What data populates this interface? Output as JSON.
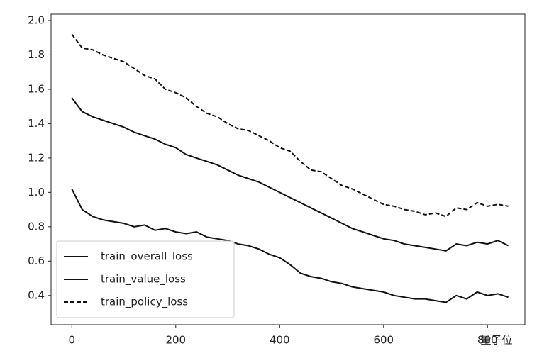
{
  "chart_data": {
    "type": "line",
    "x": [
      0,
      20,
      40,
      60,
      80,
      100,
      120,
      140,
      160,
      180,
      200,
      220,
      240,
      260,
      280,
      300,
      320,
      340,
      360,
      380,
      400,
      420,
      440,
      460,
      480,
      500,
      520,
      540,
      560,
      580,
      600,
      620,
      640,
      660,
      680,
      700,
      720,
      740,
      760,
      780,
      800,
      820,
      840
    ],
    "series": [
      {
        "name": "train_overall_loss",
        "color": "#111111",
        "line_style": "solid",
        "values": [
          1.55,
          1.47,
          1.44,
          1.42,
          1.4,
          1.38,
          1.35,
          1.33,
          1.31,
          1.28,
          1.26,
          1.22,
          1.2,
          1.18,
          1.16,
          1.13,
          1.1,
          1.08,
          1.06,
          1.03,
          1.0,
          0.97,
          0.94,
          0.91,
          0.88,
          0.85,
          0.82,
          0.79,
          0.77,
          0.75,
          0.73,
          0.72,
          0.7,
          0.69,
          0.68,
          0.67,
          0.66,
          0.7,
          0.69,
          0.71,
          0.7,
          0.72,
          0.69
        ]
      },
      {
        "name": "train_value_loss",
        "color": "#111111",
        "line_style": "solid",
        "values": [
          1.02,
          0.9,
          0.86,
          0.84,
          0.83,
          0.82,
          0.8,
          0.81,
          0.78,
          0.79,
          0.77,
          0.76,
          0.77,
          0.74,
          0.73,
          0.72,
          0.7,
          0.69,
          0.67,
          0.64,
          0.62,
          0.58,
          0.53,
          0.51,
          0.5,
          0.48,
          0.47,
          0.45,
          0.44,
          0.43,
          0.42,
          0.4,
          0.39,
          0.38,
          0.38,
          0.37,
          0.36,
          0.4,
          0.38,
          0.42,
          0.4,
          0.41,
          0.39
        ]
      },
      {
        "name": "train_policy_loss",
        "color": "#111111",
        "line_style": "dashed",
        "values": [
          1.92,
          1.84,
          1.83,
          1.8,
          1.78,
          1.76,
          1.72,
          1.68,
          1.66,
          1.6,
          1.58,
          1.55,
          1.5,
          1.46,
          1.44,
          1.4,
          1.37,
          1.36,
          1.33,
          1.3,
          1.26,
          1.24,
          1.18,
          1.13,
          1.12,
          1.08,
          1.04,
          1.02,
          0.99,
          0.96,
          0.93,
          0.92,
          0.9,
          0.89,
          0.87,
          0.88,
          0.86,
          0.91,
          0.9,
          0.94,
          0.92,
          0.93,
          0.92
        ]
      }
    ],
    "xlim": [
      -40,
      872
    ],
    "xticks": [
      0,
      200,
      400,
      600,
      800
    ],
    "ylim": [
      0.23,
      2.037
    ],
    "yticks": [
      0.4,
      0.6,
      0.8,
      {
        "value": 1,
        "label": "1.0"
      },
      1.2,
      1.4,
      1.6,
      1.8,
      {
        "value": 2,
        "label": "2.0"
      }
    ],
    "legend": "lower left",
    "watermark": "量子位"
  }
}
